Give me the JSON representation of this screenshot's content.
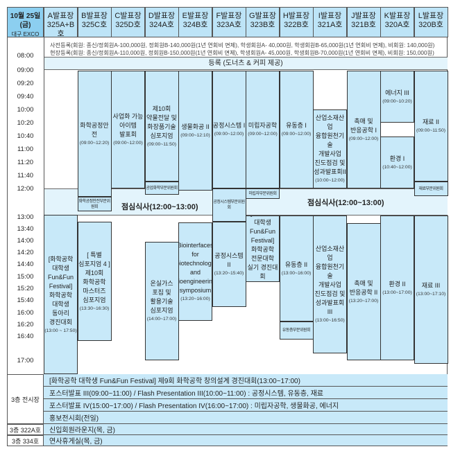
{
  "header": {
    "date": "10월 25일(금)",
    "venue": "대구 EXCO",
    "rooms": [
      {
        "name": "A발표장",
        "room": "325A+B호"
      },
      {
        "name": "B발표장",
        "room": "325C호"
      },
      {
        "name": "C발표장",
        "room": "325D호"
      },
      {
        "name": "D발표장",
        "room": "324A호"
      },
      {
        "name": "E발표장",
        "room": "324B호"
      },
      {
        "name": "F발표장",
        "room": "323A호"
      },
      {
        "name": "G발표장",
        "room": "323B호"
      },
      {
        "name": "H발표장",
        "room": "322B호"
      },
      {
        "name": "I발표장",
        "room": "321A호"
      },
      {
        "name": "J발표장",
        "room": "321B호"
      },
      {
        "name": "K발표장",
        "room": "320A호"
      },
      {
        "name": "L발표장",
        "room": "320B호"
      }
    ]
  },
  "registration": {
    "pre": "사전등록(회원: 종신/정회원A-100,000원, 정회원B-140,000원(1년 연회비 면제), 학생회원A- 40,000원, 학생회원B-65,000원(1년 연회비 면제), 비회원: 140,000원)",
    "onsite": "현장등록(회원: 종신/정회원A-110,000원, 정회원B-150,000원(1년 연회비 면제), 학생회원A- 45,000원, 학생회원B-70,000원(1년 연회비 면제), 비회원: 150,000원)",
    "desk": "등록 (도너츠 & 커피 제공)"
  },
  "times": [
    "08:00",
    "09:00",
    "09:20",
    "09:40",
    "10:00",
    "10:20",
    "10:40",
    "11:00",
    "11:20",
    "11:40",
    "12:00",
    "13:00",
    "13:40",
    "14:00",
    "14:20",
    "14:40",
    "15:00",
    "15:20",
    "15:40",
    "16:00",
    "16:20",
    "16:40",
    "17:00"
  ],
  "lunch": "점심식사(12:00~13:00)",
  "sessions": {
    "b1": {
      "title": "화학공정안전",
      "time": "(09:00~12:20)"
    },
    "b1s": {
      "title": "화학공정안전부문위원회"
    },
    "c1": {
      "title": "사업화 가능\n아이템\n발표회",
      "time": "(09:00~12:00)"
    },
    "d1": {
      "title": "제10회\n약물전달 및\n화장품기술\n심포지엄",
      "time": "(09:00~11:50)"
    },
    "d1s": {
      "title": "공업화학부문위원회"
    },
    "e1": {
      "title": "생물화공 II",
      "time": "(09:00~12:10)"
    },
    "f1": {
      "title": "공정시스템 I",
      "time": "(09:00~12:00)"
    },
    "f1s": {
      "title": "공정시스템부문위원회"
    },
    "g1": {
      "title": "미립자공학",
      "time": "(09:00~12:00)"
    },
    "g1s": {
      "title": "미립자부문위원회"
    },
    "h1": {
      "title": "유동층 I",
      "time": "(09:00~12:00)"
    },
    "i1": {
      "title": "산업소재산업\n융합원천기술\n개발사업\n진도점검 및\n성과발표회II",
      "time": "(10:00~12:00)"
    },
    "j1": {
      "title": "촉매 및\n반응공학 I",
      "time": "(09:00~12:00)"
    },
    "k1": {
      "title": "에너지 III",
      "time": "(09:00~10:20)"
    },
    "k2": {
      "title": "환경 I",
      "time": "(10:40~12:00)"
    },
    "l1": {
      "title": "재료 II",
      "time": "(09:00~11:50)"
    },
    "l1s": {
      "title": "재료부문위원회"
    },
    "a2": {
      "title": "[화학공학\n대학생\nFun&Fun\nFestival]\n화학공학\n대학생\n동아리\n경진대회",
      "time": "(13:00 ~ 17:50)"
    },
    "b2": {
      "title": "[ 특별\n심포지엄 4 ]\n제10회\n화학공학\n마스터즈\n심포지엄",
      "time": "(13:30~16:30)"
    },
    "d2": {
      "title": "온실가스\n포집 및\n활용기술\n심포지엄",
      "time": "(14:00~17:00)"
    },
    "e2": {
      "title": "Biointerfaces\nfor\nbiotechnology\nand\nbioengineering\nsymposium",
      "time": "(13:20~16:00)"
    },
    "f2": {
      "title": "공정시스템 II",
      "time": "(13:20~15:40)"
    },
    "g2": {
      "title": "[화학공학\n대학생\nFun&Fun\nFestival]\n화학공학\n전문대학\n실기 경진대회",
      "time": "(13:00~15:00)"
    },
    "h2": {
      "title": "유동층 II",
      "time": "(13:00~16:00)"
    },
    "h2s": {
      "title": "유동층부문위원회"
    },
    "i2": {
      "title": "산업소재산업\n융합원천기술\n개발사업\n진도점검 및\n성과발표회III",
      "time": "(13:00~16:50)"
    },
    "j2": {
      "title": "촉매 및\n반응공학 II",
      "time": "(13:20~17:00)"
    },
    "k3": {
      "title": "환경 II",
      "time": "(13:00~17:00)"
    },
    "l2": {
      "title": "재료 III",
      "time": "(13:00~17:10)"
    }
  },
  "bottom": {
    "exhibit_label": "3층 전시장",
    "exhibit_rows": [
      "[화학공학 대학생 Fun&Fun Festival] 제9회 화학공학 창의설계 경진대회(13:00~17:00)",
      "포스터발표 III(09:00~11:00) / Flash Presentation III(10:00~11:00) : 공정시스템, 유동층, 재료",
      "포스터발표 IV(15:00~17:00) / Flash Presentation IV(16:00~17:00) : 미립자공학, 생물화공, 에너지",
      "홍보전시회(전일)"
    ],
    "rows": [
      {
        "label": "3층 322A호",
        "text": "신입회원라운지(목, 금)"
      },
      {
        "label": "3층 334호",
        "text": "연사휴게실(목, 금)"
      }
    ]
  },
  "colors": {
    "header": "#bde4f7",
    "date_header": "#8ccff0",
    "session": "#c8e9f9",
    "band": "#e3f4fc"
  }
}
